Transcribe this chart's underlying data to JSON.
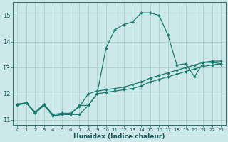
{
  "xlabel": "Humidex (Indice chaleur)",
  "ylabel": "",
  "bg_color": "#cce8e8",
  "grid_color": "#aad0d0",
  "line_color": "#1a7a6e",
  "xlim": [
    -0.5,
    23.5
  ],
  "ylim": [
    10.8,
    15.5
  ],
  "yticks": [
    11,
    12,
    13,
    14,
    15
  ],
  "xticks": [
    0,
    1,
    2,
    3,
    4,
    5,
    6,
    7,
    8,
    9,
    10,
    11,
    12,
    13,
    14,
    15,
    16,
    17,
    18,
    19,
    20,
    21,
    22,
    23
  ],
  "line1_x": [
    0,
    1,
    2,
    3,
    4,
    5,
    6,
    7,
    8,
    9,
    10,
    11,
    12,
    13,
    14,
    15,
    16,
    17,
    18,
    19,
    20,
    21,
    22,
    23
  ],
  "line1_y": [
    11.6,
    11.65,
    11.25,
    11.55,
    11.15,
    11.2,
    11.2,
    11.2,
    11.55,
    12.0,
    12.05,
    12.1,
    12.15,
    12.2,
    12.3,
    12.45,
    12.55,
    12.65,
    12.75,
    12.85,
    12.95,
    13.05,
    13.1,
    13.15
  ],
  "line2_x": [
    0,
    1,
    2,
    3,
    4,
    5,
    6,
    7,
    8,
    9,
    10,
    11,
    12,
    13,
    14,
    15,
    16,
    17,
    18,
    19,
    20,
    21,
    22,
    23
  ],
  "line2_y": [
    11.6,
    11.65,
    11.3,
    11.6,
    11.2,
    11.25,
    11.25,
    11.5,
    12.0,
    12.1,
    12.15,
    12.2,
    12.25,
    12.35,
    12.45,
    12.6,
    12.7,
    12.8,
    12.9,
    13.0,
    13.1,
    13.2,
    13.25,
    13.25
  ],
  "line3_x": [
    0,
    1,
    2,
    3,
    4,
    5,
    6,
    7,
    8,
    9,
    10,
    11,
    12,
    13,
    14,
    15,
    16,
    17,
    18,
    19,
    20,
    21,
    22,
    23
  ],
  "line3_y": [
    11.55,
    11.65,
    11.25,
    11.6,
    11.15,
    11.2,
    11.2,
    11.55,
    11.55,
    12.0,
    13.75,
    14.45,
    14.65,
    14.75,
    15.1,
    15.1,
    15.0,
    14.25,
    13.1,
    13.15,
    12.65,
    13.2,
    13.2,
    13.15
  ],
  "markersize": 2.0,
  "linewidth": 0.9
}
